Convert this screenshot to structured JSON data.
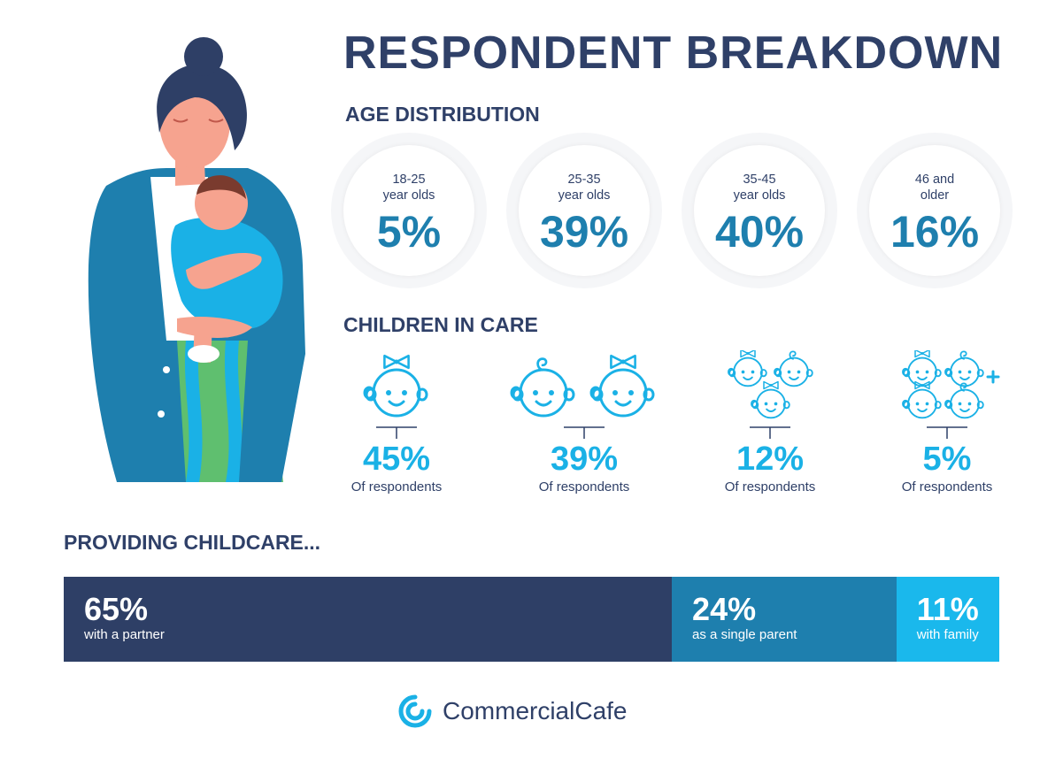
{
  "title": "RESPONDENT BREAKDOWN",
  "age_distribution": {
    "heading": "AGE DISTRIBUTION",
    "items": [
      {
        "label_line1": "18-25",
        "label_line2": "year olds",
        "value": "5%"
      },
      {
        "label_line1": "25-35",
        "label_line2": "year olds",
        "value": "39%"
      },
      {
        "label_line1": "35-45",
        "label_line2": "year olds",
        "value": "40%"
      },
      {
        "label_line1": "46 and",
        "label_line2": "older",
        "value": "16%"
      }
    ]
  },
  "children_in_care": {
    "heading": "CHILDREN IN CARE",
    "items": [
      {
        "icon": "one-baby-icon",
        "value": "45%",
        "caption": "Of respondents"
      },
      {
        "icon": "two-babies-icon",
        "value": "39%",
        "caption": "Of respondents"
      },
      {
        "icon": "three-babies-icon",
        "value": "12%",
        "caption": "Of respondents"
      },
      {
        "icon": "four-plus-babies-icon",
        "value": "5%",
        "caption": "Of respondents"
      }
    ]
  },
  "providing_childcare": {
    "heading": "PROVIDING CHILDCARE...",
    "segments": [
      {
        "value": "65%",
        "caption": "with a partner",
        "share": 65,
        "color": "#2e3f66"
      },
      {
        "value": "24%",
        "caption": "as a single parent",
        "share": 24,
        "color": "#1e7fae"
      },
      {
        "value": "11%",
        "caption": "with family",
        "share": 11,
        "color": "#1ab8ec"
      }
    ]
  },
  "brand": {
    "name": "CommercialCafe",
    "color": "#1ab1e6"
  },
  "colors": {
    "navy": "#2f4068",
    "teal": "#1e7fae",
    "cyan": "#1ab1e6"
  }
}
